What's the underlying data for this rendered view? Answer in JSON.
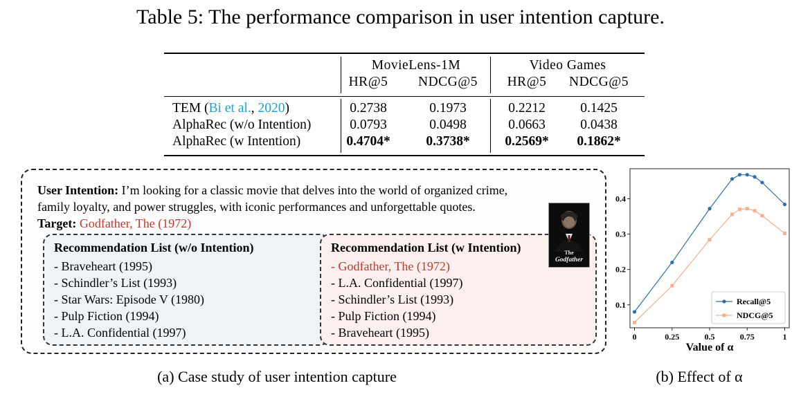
{
  "caption": "Table 5: The performance comparison in user intention capture.",
  "table": {
    "datasets": [
      "MovieLens-1M",
      "Video Games"
    ],
    "metrics": [
      "HR@5",
      "NDCG@5",
      "HR@5",
      "NDCG@5"
    ],
    "rows": [
      {
        "method": "TEM (",
        "cite_author": "Bi et al.",
        "cite_sep": ", ",
        "cite_year": "2020",
        "method_end": ")",
        "values": [
          "0.2738",
          "0.1973",
          "0.2212",
          "0.1425"
        ]
      },
      {
        "method": "AlphaRec (w/o Intention)",
        "values": [
          "0.0793",
          "0.0498",
          "0.0663",
          "0.0438"
        ]
      },
      {
        "method": "AlphaRec (w Intention)",
        "values": [
          "0.4704*",
          "0.3738*",
          "0.2569*",
          "0.1862*"
        ]
      }
    ]
  },
  "case_study": {
    "intention_label": "User Intention:",
    "intention_line1": " I’m looking for a classic movie that delves into the world of organized crime,",
    "intention_line2": "family loyalty, and power struggles, with iconic performances and unforgettable quotes.",
    "target_label": "Target:",
    "target_value": " Godfather, The (1972)",
    "list_wo": {
      "title": "Recommendation List (w/o Intention)",
      "items": [
        "- Braveheart (1995)",
        "- Schindler’s List (1993)",
        "- Star Wars: Episode V (1980)",
        "- Pulp Fiction (1994)",
        "- L.A. Confidential (1997)"
      ]
    },
    "list_w": {
      "title": "Recommendation List (w Intention)",
      "items": [
        "- Godfather, The (1972)",
        "- L.A. Confidential (1997)",
        "- Schindler’s List (1993)",
        "- Pulp Fiction (1994)",
        "- Braveheart (1995)"
      ]
    },
    "poster_top": "The",
    "poster_title": "Godfather",
    "subcaption": "(a) Case study of user intention capture"
  },
  "chart_subcaption": "(b) Effect of α",
  "chart_data": {
    "type": "line",
    "x": [
      0,
      0.25,
      0.5,
      0.65,
      0.7,
      0.75,
      0.8,
      0.85,
      1
    ],
    "xticks": [
      "0",
      "0.25",
      "0.5",
      "0.75",
      "1"
    ],
    "xtick_values": [
      0,
      0.25,
      0.5,
      0.75,
      1
    ],
    "yticks": [
      "0.1",
      "0.2",
      "0.3",
      "0.4"
    ],
    "ytick_values": [
      0.1,
      0.2,
      0.3,
      0.4
    ],
    "xlim": [
      -0.03,
      1.03
    ],
    "ylim": [
      0.035,
      0.485
    ],
    "xlabel": "Value of α",
    "series": [
      {
        "name": "Recall@5",
        "color": "#2f6fa7",
        "marker": "circle",
        "values": [
          0.08,
          0.22,
          0.372,
          0.456,
          0.468,
          0.468,
          0.462,
          0.446,
          0.384
        ]
      },
      {
        "name": "NDCG@5",
        "color": "#f4b08f",
        "marker": "square",
        "values": [
          0.05,
          0.154,
          0.284,
          0.356,
          0.37,
          0.372,
          0.366,
          0.352,
          0.302
        ]
      }
    ],
    "legend": "bottom-right"
  }
}
